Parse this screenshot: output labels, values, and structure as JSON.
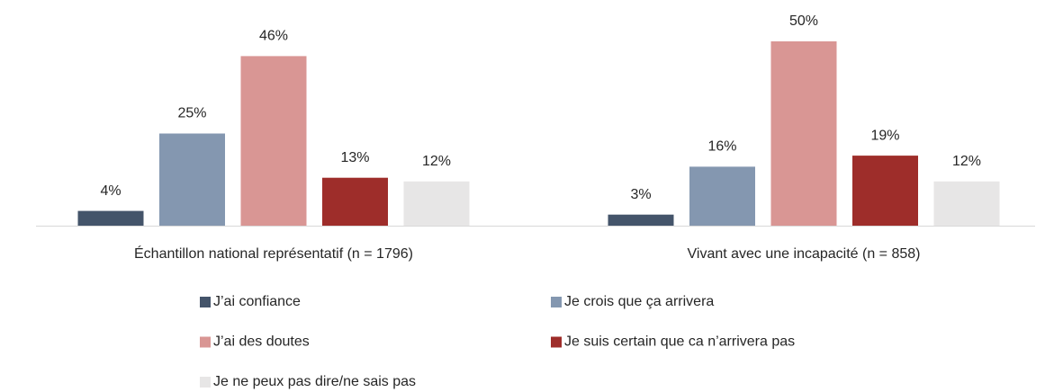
{
  "chart_data": {
    "type": "bar",
    "categories": [
      "Échantillon national représentatif (n = 1796)",
      "Vivant avec une incapacité  (n = 858)"
    ],
    "series": [
      {
        "name": "J’ai confiance",
        "color": "#44546a",
        "values": [
          4,
          3
        ],
        "value_labels": [
          "4%",
          "3%"
        ]
      },
      {
        "name": "Je crois que ça arrivera",
        "color": "#8497b0",
        "values": [
          25,
          16
        ],
        "value_labels": [
          "25%",
          "16%"
        ]
      },
      {
        "name": "J’ai des doutes",
        "color": "#d99694",
        "values": [
          46,
          50
        ],
        "value_labels": [
          "46%",
          "50%"
        ]
      },
      {
        "name": "Je suis certain que ca n’arrivera pas",
        "color": "#9e2d2a",
        "values": [
          13,
          19
        ],
        "value_labels": [
          "13%",
          "19%"
        ]
      },
      {
        "name": "Je ne peux pas dire/ne sais pas",
        "color": "#e7e6e6",
        "values": [
          12,
          12
        ],
        "value_labels": [
          "12%",
          "12%"
        ]
      }
    ]
  }
}
